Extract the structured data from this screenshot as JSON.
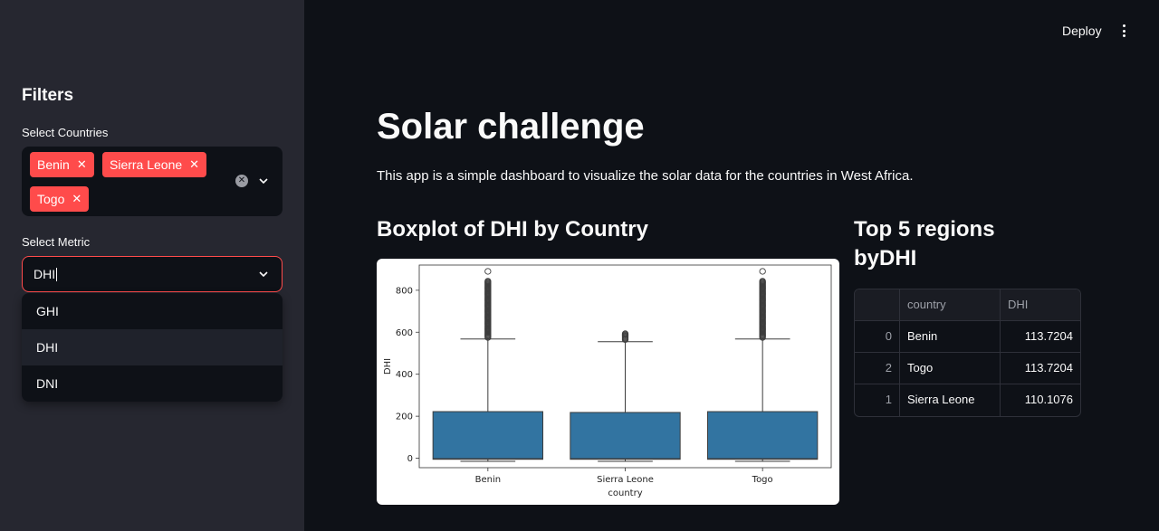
{
  "sidebar": {
    "title": "Filters",
    "countries_label": "Select Countries",
    "selected_countries": [
      "Benin",
      "Sierra Leone",
      "Togo"
    ],
    "metric_label": "Select Metric",
    "metric_value": "DHI",
    "metric_options": [
      "GHI",
      "DHI",
      "DNI"
    ],
    "metric_highlighted": "DHI"
  },
  "header": {
    "deploy_label": "Deploy"
  },
  "main": {
    "title": "Solar challenge",
    "intro": "This app is a simple dashboard to visualize the solar data for the countries in West Africa.",
    "chart_heading": "Boxplot of DHI by Country",
    "table_heading_line1": "Top 5 regions",
    "table_heading_line2": "byDHI"
  },
  "table": {
    "columns": [
      "",
      "country",
      "DHI"
    ],
    "rows": [
      {
        "index": "0",
        "country": "Benin",
        "value": "113.7204"
      },
      {
        "index": "2",
        "country": "Togo",
        "value": "113.7204"
      },
      {
        "index": "1",
        "country": "Sierra Leone",
        "value": "110.1076"
      }
    ]
  },
  "colors": {
    "accent": "#ff4b4b",
    "box_fill": "#3274a1"
  },
  "chart_data": {
    "type": "box",
    "xlabel": "country",
    "ylabel": "DHI",
    "categories": [
      "Benin",
      "Sierra Leone",
      "Togo"
    ],
    "yticks": [
      0,
      200,
      400,
      600,
      800
    ],
    "ylim": [
      -45,
      920
    ],
    "boxes": [
      {
        "category": "Benin",
        "whisker_low": -15,
        "q1": -5,
        "median": -2,
        "q3": 222,
        "whisker_high": 568,
        "outlier_min": 575,
        "outlier_max": 845,
        "max_outlier": 890
      },
      {
        "category": "Sierra Leone",
        "whisker_low": -15,
        "q1": -5,
        "median": -2,
        "q3": 218,
        "whisker_high": 555,
        "outlier_min": 565,
        "outlier_max": 595,
        "max_outlier": 595
      },
      {
        "category": "Togo",
        "whisker_low": -15,
        "q1": -5,
        "median": -2,
        "q3": 222,
        "whisker_high": 568,
        "outlier_min": 575,
        "outlier_max": 845,
        "max_outlier": 890
      }
    ]
  }
}
